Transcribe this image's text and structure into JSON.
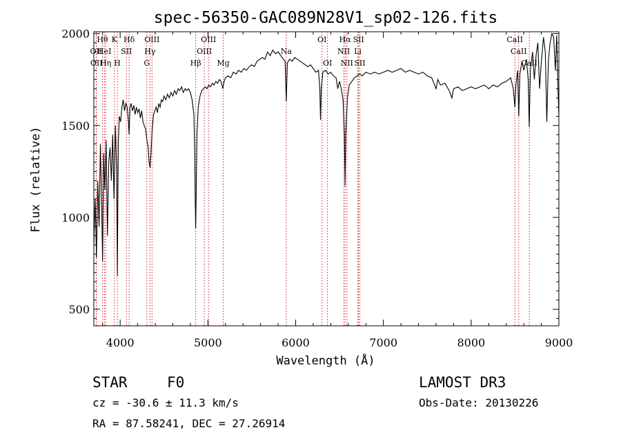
{
  "chart_data": {
    "type": "line",
    "title": "spec-56350-GAC089N28V1_sp02-126.fits",
    "xlabel": "Wavelength (Å)",
    "ylabel": "Flux (relative)",
    "xlim": [
      3700,
      9000
    ],
    "ylim": [
      410,
      2010
    ],
    "xticks": [
      4000,
      5000,
      6000,
      7000,
      8000,
      9000
    ],
    "xtick_labels": [
      "4000",
      "5000",
      "6000",
      "7000",
      "8000",
      "9000"
    ],
    "yticks": [
      500,
      1000,
      1500,
      2000
    ],
    "ytick_labels": [
      "500",
      "1000",
      "1500",
      "2000"
    ],
    "grid": false,
    "series": [
      {
        "points": [
          [
            3700,
            850
          ],
          [
            3715,
            1100
          ],
          [
            3730,
            780
          ],
          [
            3745,
            1200
          ],
          [
            3760,
            950
          ],
          [
            3775,
            1400
          ],
          [
            3790,
            1050
          ],
          [
            3800,
            760
          ],
          [
            3812,
            1350
          ],
          [
            3825,
            1150
          ],
          [
            3840,
            1420
          ],
          [
            3855,
            900
          ],
          [
            3870,
            1300
          ],
          [
            3885,
            1380
          ],
          [
            3900,
            1200
          ],
          [
            3915,
            1450
          ],
          [
            3930,
            1100
          ],
          [
            3945,
            1500
          ],
          [
            3960,
            1250
          ],
          [
            3968,
            680
          ],
          [
            3978,
            1400
          ],
          [
            3990,
            1550
          ],
          [
            4005,
            1520
          ],
          [
            4020,
            1600
          ],
          [
            4035,
            1640
          ],
          [
            4050,
            1580
          ],
          [
            4065,
            1620
          ],
          [
            4080,
            1600
          ],
          [
            4095,
            1520
          ],
          [
            4102,
            1450
          ],
          [
            4112,
            1600
          ],
          [
            4125,
            1620
          ],
          [
            4140,
            1580
          ],
          [
            4155,
            1610
          ],
          [
            4170,
            1560
          ],
          [
            4185,
            1600
          ],
          [
            4200,
            1570
          ],
          [
            4215,
            1590
          ],
          [
            4230,
            1540
          ],
          [
            4245,
            1580
          ],
          [
            4260,
            1520
          ],
          [
            4275,
            1500
          ],
          [
            4290,
            1480
          ],
          [
            4305,
            1420
          ],
          [
            4320,
            1380
          ],
          [
            4330,
            1300
          ],
          [
            4341,
            1270
          ],
          [
            4352,
            1350
          ],
          [
            4365,
            1480
          ],
          [
            4380,
            1560
          ],
          [
            4395,
            1580
          ],
          [
            4410,
            1600
          ],
          [
            4425,
            1570
          ],
          [
            4440,
            1620
          ],
          [
            4455,
            1600
          ],
          [
            4470,
            1640
          ],
          [
            4485,
            1630
          ],
          [
            4500,
            1660
          ],
          [
            4520,
            1640
          ],
          [
            4540,
            1670
          ],
          [
            4560,
            1650
          ],
          [
            4580,
            1680
          ],
          [
            4600,
            1660
          ],
          [
            4620,
            1690
          ],
          [
            4640,
            1670
          ],
          [
            4660,
            1700
          ],
          [
            4680,
            1690
          ],
          [
            4700,
            1710
          ],
          [
            4720,
            1680
          ],
          [
            4740,
            1700
          ],
          [
            4760,
            1690
          ],
          [
            4780,
            1700
          ],
          [
            4800,
            1680
          ],
          [
            4820,
            1640
          ],
          [
            4840,
            1560
          ],
          [
            4850,
            1350
          ],
          [
            4855,
            1100
          ],
          [
            4861,
            940
          ],
          [
            4867,
            1150
          ],
          [
            4875,
            1450
          ],
          [
            4890,
            1600
          ],
          [
            4910,
            1660
          ],
          [
            4930,
            1690
          ],
          [
            4950,
            1700
          ],
          [
            4970,
            1710
          ],
          [
            4990,
            1700
          ],
          [
            5010,
            1720
          ],
          [
            5030,
            1710
          ],
          [
            5050,
            1730
          ],
          [
            5070,
            1720
          ],
          [
            5090,
            1740
          ],
          [
            5110,
            1730
          ],
          [
            5130,
            1750
          ],
          [
            5150,
            1740
          ],
          [
            5170,
            1700
          ],
          [
            5185,
            1740
          ],
          [
            5200,
            1760
          ],
          [
            5230,
            1770
          ],
          [
            5260,
            1760
          ],
          [
            5290,
            1790
          ],
          [
            5320,
            1780
          ],
          [
            5350,
            1800
          ],
          [
            5380,
            1790
          ],
          [
            5410,
            1810
          ],
          [
            5440,
            1800
          ],
          [
            5470,
            1820
          ],
          [
            5500,
            1830
          ],
          [
            5530,
            1820
          ],
          [
            5560,
            1850
          ],
          [
            5590,
            1860
          ],
          [
            5620,
            1870
          ],
          [
            5650,
            1860
          ],
          [
            5680,
            1900
          ],
          [
            5710,
            1880
          ],
          [
            5740,
            1910
          ],
          [
            5770,
            1890
          ],
          [
            5800,
            1900
          ],
          [
            5830,
            1880
          ],
          [
            5860,
            1860
          ],
          [
            5880,
            1850
          ],
          [
            5893,
            1630
          ],
          [
            5905,
            1840
          ],
          [
            5930,
            1860
          ],
          [
            5960,
            1850
          ],
          [
            5990,
            1870
          ],
          [
            6020,
            1860
          ],
          [
            6050,
            1850
          ],
          [
            6080,
            1840
          ],
          [
            6110,
            1830
          ],
          [
            6140,
            1820
          ],
          [
            6170,
            1830
          ],
          [
            6200,
            1810
          ],
          [
            6230,
            1790
          ],
          [
            6260,
            1800
          ],
          [
            6275,
            1700
          ],
          [
            6283,
            1530
          ],
          [
            6292,
            1700
          ],
          [
            6310,
            1790
          ],
          [
            6340,
            1800
          ],
          [
            6370,
            1780
          ],
          [
            6400,
            1790
          ],
          [
            6430,
            1770
          ],
          [
            6460,
            1760
          ],
          [
            6480,
            1700
          ],
          [
            6500,
            1740
          ],
          [
            6520,
            1700
          ],
          [
            6540,
            1640
          ],
          [
            6555,
            1450
          ],
          [
            6563,
            1170
          ],
          [
            6571,
            1450
          ],
          [
            6590,
            1650
          ],
          [
            6610,
            1720
          ],
          [
            6640,
            1740
          ],
          [
            6670,
            1760
          ],
          [
            6700,
            1770
          ],
          [
            6730,
            1780
          ],
          [
            6760,
            1770
          ],
          [
            6800,
            1790
          ],
          [
            6850,
            1780
          ],
          [
            6900,
            1790
          ],
          [
            6950,
            1780
          ],
          [
            7000,
            1790
          ],
          [
            7050,
            1800
          ],
          [
            7100,
            1790
          ],
          [
            7150,
            1800
          ],
          [
            7200,
            1810
          ],
          [
            7250,
            1790
          ],
          [
            7300,
            1800
          ],
          [
            7350,
            1790
          ],
          [
            7400,
            1780
          ],
          [
            7450,
            1790
          ],
          [
            7500,
            1770
          ],
          [
            7550,
            1760
          ],
          [
            7600,
            1700
          ],
          [
            7620,
            1750
          ],
          [
            7650,
            1720
          ],
          [
            7700,
            1730
          ],
          [
            7750,
            1690
          ],
          [
            7780,
            1650
          ],
          [
            7800,
            1700
          ],
          [
            7850,
            1710
          ],
          [
            7900,
            1690
          ],
          [
            7950,
            1700
          ],
          [
            8000,
            1710
          ],
          [
            8050,
            1700
          ],
          [
            8100,
            1710
          ],
          [
            8150,
            1720
          ],
          [
            8200,
            1700
          ],
          [
            8250,
            1720
          ],
          [
            8300,
            1710
          ],
          [
            8350,
            1730
          ],
          [
            8400,
            1740
          ],
          [
            8450,
            1760
          ],
          [
            8480,
            1700
          ],
          [
            8498,
            1600
          ],
          [
            8510,
            1720
          ],
          [
            8530,
            1800
          ],
          [
            8542,
            1550
          ],
          [
            8555,
            1780
          ],
          [
            8580,
            1850
          ],
          [
            8600,
            1800
          ],
          [
            8630,
            1860
          ],
          [
            8650,
            1750
          ],
          [
            8662,
            1490
          ],
          [
            8675,
            1800
          ],
          [
            8700,
            1900
          ],
          [
            8720,
            1750
          ],
          [
            8740,
            1880
          ],
          [
            8760,
            1950
          ],
          [
            8780,
            1700
          ],
          [
            8800,
            1850
          ],
          [
            8825,
            1980
          ],
          [
            8845,
            1900
          ],
          [
            8862,
            1520
          ],
          [
            8880,
            1850
          ],
          [
            8900,
            1950
          ],
          [
            8920,
            2000
          ],
          [
            8940,
            1980
          ],
          [
            8960,
            1800
          ],
          [
            8975,
            1990
          ],
          [
            8990,
            1700
          ],
          [
            9000,
            1550
          ]
        ]
      }
    ],
    "line_markers": [
      {
        "label": "Hθ",
        "x": 3798,
        "row": 0
      },
      {
        "label": "OII",
        "x": 3727,
        "row": 1
      },
      {
        "label": "OII",
        "x": 3729,
        "row": 2
      },
      {
        "label": "HeI",
        "x": 3820,
        "row": 1
      },
      {
        "label": "Hη",
        "x": 3835,
        "row": 2
      },
      {
        "label": "K",
        "x": 3934,
        "row": 0
      },
      {
        "label": "H",
        "x": 3968,
        "row": 2
      },
      {
        "label": "SII",
        "x": 4072,
        "row": 1
      },
      {
        "label": "Hδ",
        "x": 4102,
        "row": 0
      },
      {
        "label": "G",
        "x": 4304,
        "row": 2
      },
      {
        "label": "OIII",
        "x": 4363,
        "row": 0
      },
      {
        "label": "Hγ",
        "x": 4340,
        "row": 1
      },
      {
        "label": "Hβ",
        "x": 4861,
        "row": 2
      },
      {
        "label": "OIII",
        "x": 4959,
        "row": 1
      },
      {
        "label": "OIII",
        "x": 5007,
        "row": 0
      },
      {
        "label": "Mg",
        "x": 5175,
        "row": 2
      },
      {
        "label": "Na",
        "x": 5893,
        "row": 1
      },
      {
        "label": "OI",
        "x": 6300,
        "row": 0
      },
      {
        "label": "OI",
        "x": 6363,
        "row": 2
      },
      {
        "label": "Hα",
        "x": 6563,
        "row": 0
      },
      {
        "label": "NII",
        "x": 6548,
        "row": 1
      },
      {
        "label": "NII",
        "x": 6584,
        "row": 2
      },
      {
        "label": "Li",
        "x": 6708,
        "row": 1
      },
      {
        "label": "SII",
        "x": 6717,
        "row": 0
      },
      {
        "label": "SII",
        "x": 6731,
        "row": 2
      },
      {
        "label": "CaII",
        "x": 8498,
        "row": 0
      },
      {
        "label": "CaII",
        "x": 8542,
        "row": 1
      },
      {
        "label": "CaII",
        "x": 8662,
        "row": 2
      }
    ]
  },
  "info": {
    "object_class": "STAR",
    "subclass": "F0",
    "survey": "LAMOST DR3",
    "redshift": "cz = -30.6 ± 11.3 km/s",
    "obs_date": "Obs-Date: 20130226",
    "coords": "RA =  87.58241, DEC =  27.26914"
  },
  "colors": {
    "line": "#000000",
    "markers": "#cc0000"
  }
}
